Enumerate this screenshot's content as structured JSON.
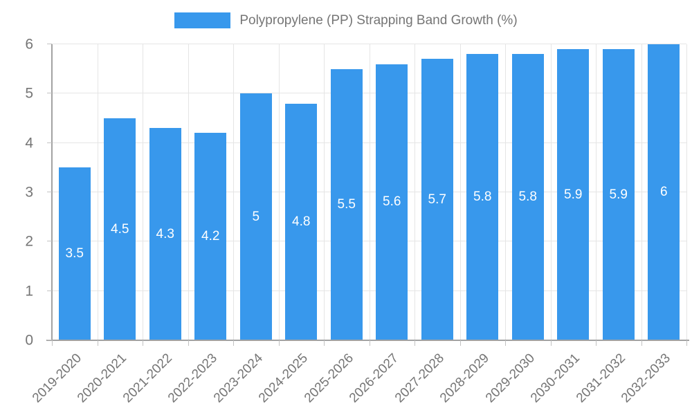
{
  "legend": {
    "label": "Polypropylene (PP) Strapping Band Growth (%)"
  },
  "chart_data": {
    "type": "bar",
    "title": "Polypropylene (PP) Strapping Band Growth (%)",
    "categories": [
      "2019-2020",
      "2020-2021",
      "2021-2022",
      "2022-2023",
      "2023-2024",
      "2024-2025",
      "2025-2026",
      "2026-2027",
      "2027-2028",
      "2028-2029",
      "2029-2030",
      "2030-2031",
      "2031-2032",
      "2032-2033"
    ],
    "values": [
      3.5,
      4.5,
      4.3,
      4.2,
      5,
      4.8,
      5.5,
      5.6,
      5.7,
      5.8,
      5.8,
      5.9,
      5.9,
      6
    ],
    "value_labels": [
      "3.5",
      "4.5",
      "4.3",
      "4.2",
      "5",
      "4.8",
      "5.5",
      "5.6",
      "5.7",
      "5.8",
      "5.8",
      "5.9",
      "5.9",
      "6"
    ],
    "xlabel": "",
    "ylabel": "",
    "ylim": [
      0,
      6
    ],
    "y_ticks": [
      0,
      1,
      2,
      3,
      4,
      5,
      6
    ],
    "grid": true,
    "legend_position": "top",
    "value_label_position": "center",
    "colors": {
      "bar": "#3898EC",
      "value_label": "#FFFFFF",
      "text": "#757575",
      "axis": "#A2A2A2",
      "gridline": "#E5E5E5",
      "tick": "#C2C2C2",
      "background": "#FFFFFF"
    }
  }
}
